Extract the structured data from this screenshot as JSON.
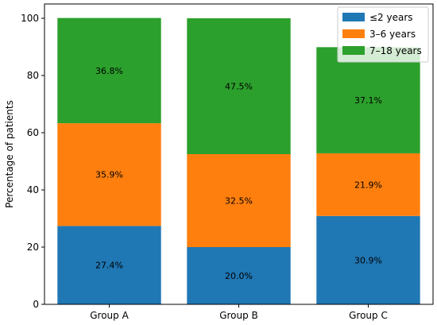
{
  "chart_data": {
    "type": "bar",
    "stacked": true,
    "categories": [
      "Group A",
      "Group B",
      "Group C"
    ],
    "series": [
      {
        "name": "≤2 years",
        "color": "#1f77b4",
        "values": [
          27.4,
          20.0,
          30.9
        ],
        "labels": [
          "27.4%",
          "20.0%",
          "30.9%"
        ]
      },
      {
        "name": "3–6 years",
        "color": "#ff7f0e",
        "values": [
          35.9,
          32.5,
          21.9
        ],
        "labels": [
          "35.9%",
          "32.5%",
          "21.9%"
        ]
      },
      {
        "name": "7–18 years",
        "color": "#2ca02c",
        "values": [
          36.8,
          47.5,
          37.1
        ],
        "labels": [
          "36.8%",
          "47.5%",
          "37.1%"
        ]
      }
    ],
    "ylabel": "Percentage of patients",
    "ylim": [
      0,
      105
    ],
    "yticks": [
      0,
      20,
      40,
      60,
      80,
      100
    ],
    "grid": false,
    "legend_position": "top-right"
  }
}
